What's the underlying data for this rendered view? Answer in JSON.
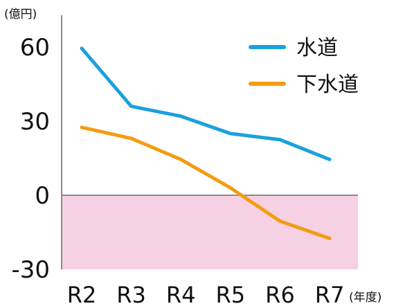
{
  "chart_data": {
    "type": "line",
    "title": "",
    "xlabel": "",
    "ylabel": "",
    "y_unit_label": "(億円)",
    "x_unit_label": "(年度)",
    "categories": [
      "R2",
      "R3",
      "R4",
      "R5",
      "R6",
      "R7"
    ],
    "yticks": [
      "60",
      "30",
      "0",
      "-30"
    ],
    "ylim": [
      -30,
      66
    ],
    "grid": false,
    "legend_position": "top-right",
    "negative_region_color": "#f6d0e3",
    "series": [
      {
        "name": "水道",
        "color": "#1aa1dd",
        "values": [
          59.5,
          36,
          32,
          25,
          22.5,
          14.5
        ]
      },
      {
        "name": "下水道",
        "color": "#f39c12",
        "values": [
          27.5,
          23,
          14.5,
          3,
          -10.5,
          -17.5
        ]
      }
    ]
  }
}
